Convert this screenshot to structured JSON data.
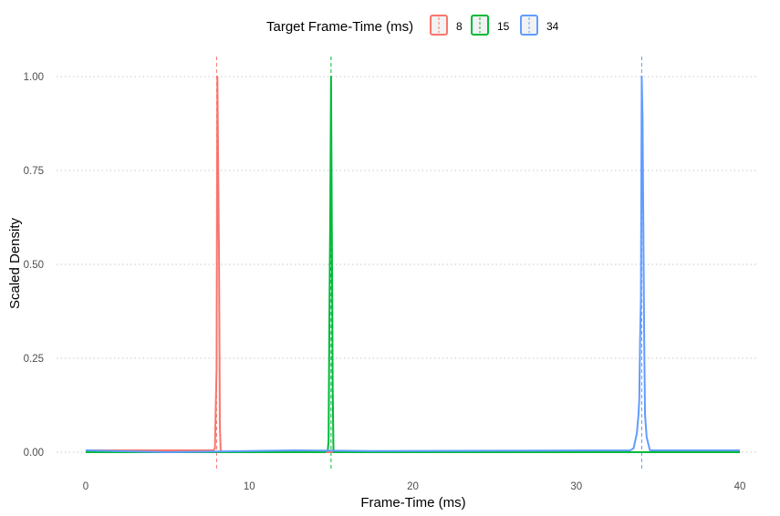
{
  "chart_data": {
    "type": "line",
    "title": "",
    "xlabel": "Frame-Time (ms)",
    "ylabel": "Scaled Density",
    "xlim": [
      0,
      40
    ],
    "ylim": [
      0,
      1
    ],
    "xticks": [
      0,
      10,
      20,
      30,
      40
    ],
    "yticks": [
      0,
      0.25,
      0.5,
      0.75,
      1
    ],
    "ytick_labels": [
      "0.00",
      "0.25",
      "0.50",
      "0.75",
      "1.00"
    ],
    "xtick_labels": [
      "0",
      "10",
      "20",
      "30",
      "40"
    ],
    "grid": {
      "horizontal": "dotted",
      "vertical": "none"
    },
    "legend": {
      "title": "Target Frame-Time (ms)",
      "position": "top",
      "entries": [
        "8",
        "15",
        "34"
      ]
    },
    "series": [
      {
        "name": "8",
        "color": "#F8766D",
        "target": 8,
        "points": [
          [
            0,
            0.005
          ],
          [
            7.6,
            0.005
          ],
          [
            7.8,
            0.005
          ],
          [
            7.9,
            0.01
          ],
          [
            7.95,
            0.12
          ],
          [
            8.0,
            0.22
          ],
          [
            8.05,
            1.0
          ],
          [
            8.1,
            0.75
          ],
          [
            8.15,
            0.52
          ],
          [
            8.2,
            0.07
          ],
          [
            8.25,
            0.005
          ],
          [
            8.35,
            0.0
          ],
          [
            40,
            0.0
          ]
        ]
      },
      {
        "name": "15",
        "color": "#00BA38",
        "target": 15,
        "points": [
          [
            0,
            0.0
          ],
          [
            14.6,
            0.0
          ],
          [
            14.8,
            0.005
          ],
          [
            14.85,
            0.03
          ],
          [
            14.9,
            0.36
          ],
          [
            14.95,
            0.62
          ],
          [
            15.0,
            1.0
          ],
          [
            15.05,
            0.59
          ],
          [
            15.1,
            0.17
          ],
          [
            15.15,
            0.0
          ],
          [
            15.3,
            0.0
          ],
          [
            40,
            0.0
          ]
        ]
      },
      {
        "name": "34",
        "color": "#619CFF",
        "target": 34,
        "points": [
          [
            0,
            0.005
          ],
          [
            5,
            0.0
          ],
          [
            12.8,
            0.005
          ],
          [
            17.5,
            0.003
          ],
          [
            33.3,
            0.005
          ],
          [
            33.5,
            0.01
          ],
          [
            33.7,
            0.05
          ],
          [
            33.8,
            0.1
          ],
          [
            33.85,
            0.14
          ],
          [
            33.9,
            0.3
          ],
          [
            33.95,
            0.41
          ],
          [
            34.0,
            1.0
          ],
          [
            34.05,
            0.89
          ],
          [
            34.1,
            0.59
          ],
          [
            34.15,
            0.3
          ],
          [
            34.2,
            0.1
          ],
          [
            34.3,
            0.04
          ],
          [
            34.5,
            0.005
          ],
          [
            40,
            0.005
          ]
        ]
      }
    ]
  }
}
